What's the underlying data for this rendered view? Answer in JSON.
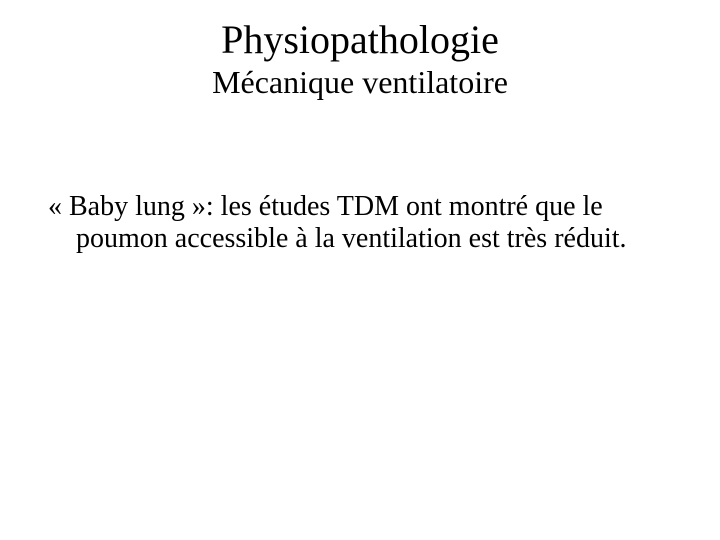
{
  "slide": {
    "title": "Physiopathologie",
    "subtitle": "Mécanique ventilatoire",
    "body": "« Baby lung »: les études TDM ont montré que le poumon accessible à la ventilation est très réduit.",
    "background_color": "#ffffff",
    "text_color": "#000000",
    "title_fontsize": 40,
    "subtitle_fontsize": 32,
    "body_fontsize": 28,
    "font_family": "Times New Roman"
  }
}
